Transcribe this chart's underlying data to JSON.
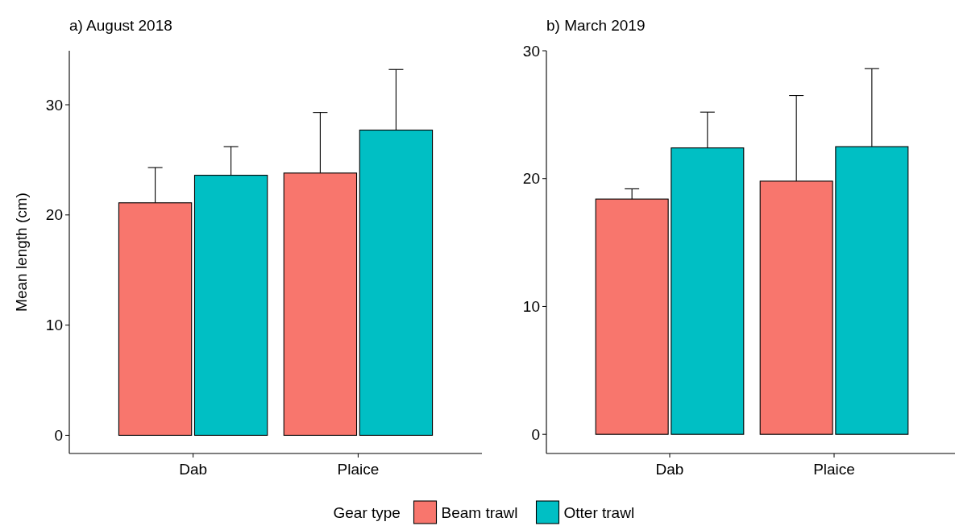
{
  "chart_data": [
    {
      "type": "bar",
      "title": "a) August 2018",
      "ylabel": "Mean length (cm)",
      "categories": [
        "Dab",
        "Plaice"
      ],
      "ylim": [
        -1.65,
        34.9
      ],
      "yticks": [
        0,
        10,
        20,
        30
      ],
      "grid": false,
      "legend": "bottom",
      "legend_title": "Gear type",
      "series": [
        {
          "name": "Beam trawl",
          "color": "#f8766d",
          "values": [
            21.1,
            23.8
          ],
          "errors": [
            [
              21.1,
              24.3
            ],
            [
              23.8,
              29.3
            ]
          ]
        },
        {
          "name": "Otter trawl",
          "color": "#00bfc4",
          "values": [
            23.6,
            27.7
          ],
          "errors": [
            [
              23.6,
              26.2
            ],
            [
              27.7,
              33.2
            ]
          ]
        }
      ]
    },
    {
      "type": "bar",
      "title": "b) March 2019",
      "categories": [
        "Dab",
        "Plaice"
      ],
      "ylim": [
        -1.5,
        30
      ],
      "yticks": [
        0,
        10,
        20,
        30
      ],
      "grid": false,
      "series": [
        {
          "color": "#f8766d",
          "values": [
            18.4,
            19.8
          ],
          "errors": [
            [
              18.4,
              19.2
            ],
            [
              19.8,
              26.5
            ]
          ]
        },
        {
          "color": "#00bfc4",
          "values": [
            22.4,
            22.5
          ],
          "errors": [
            [
              22.4,
              25.2
            ],
            [
              22.5,
              28.6
            ]
          ]
        }
      ]
    }
  ]
}
